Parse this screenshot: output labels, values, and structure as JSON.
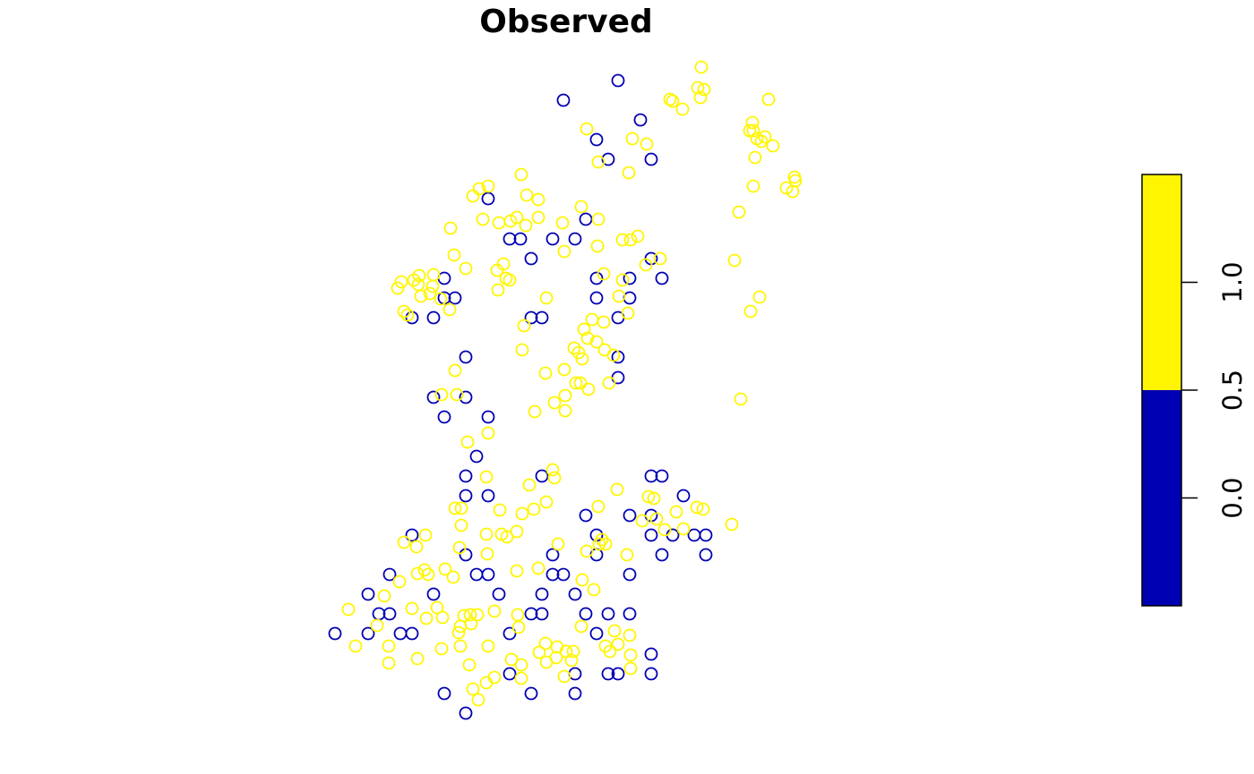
{
  "chart_data": {
    "type": "scatter",
    "title": "Observed",
    "xlabel": "",
    "ylabel": "",
    "grid": false,
    "colors": {
      "low": "#0000B3",
      "high": "#FFF500"
    },
    "legend": {
      "placement": "right",
      "type": "colorbar",
      "range": [
        -0.5,
        1.5
      ],
      "breaks": [
        -0.5,
        0.5,
        1.5
      ],
      "segment_colors": [
        "#0000B3",
        "#FFF500"
      ],
      "ticks": [
        {
          "value": 0.0,
          "label": "0.0"
        },
        {
          "value": 0.5,
          "label": "0.5"
        },
        {
          "value": 1.0,
          "label": "1.0"
        }
      ]
    },
    "series": [
      {
        "value": 0,
        "points": [
          [
            629,
            112
          ],
          [
            690,
            90
          ],
          [
            715,
            134
          ],
          [
            666,
            156
          ],
          [
            679,
            178
          ],
          [
            727,
            178
          ],
          [
            545,
            222
          ],
          [
            654,
            245
          ],
          [
            569,
            267
          ],
          [
            581,
            267
          ],
          [
            617,
            267
          ],
          [
            642,
            267
          ],
          [
            593,
            289
          ],
          [
            727,
            289
          ],
          [
            739,
            311
          ],
          [
            496,
            311
          ],
          [
            496,
            333
          ],
          [
            508,
            333
          ],
          [
            666,
            311
          ],
          [
            703,
            311
          ],
          [
            666,
            333
          ],
          [
            703,
            333
          ],
          [
            460,
            355
          ],
          [
            484,
            355
          ],
          [
            593,
            355
          ],
          [
            605,
            355
          ],
          [
            690,
            355
          ],
          [
            520,
            399
          ],
          [
            690,
            399
          ],
          [
            690,
            422
          ],
          [
            484,
            444
          ],
          [
            520,
            444
          ],
          [
            496,
            466
          ],
          [
            545,
            466
          ],
          [
            532,
            510
          ],
          [
            605,
            532
          ],
          [
            727,
            532
          ],
          [
            739,
            532
          ],
          [
            520,
            532
          ],
          [
            520,
            554
          ],
          [
            545,
            554
          ],
          [
            763,
            554
          ],
          [
            654,
            576
          ],
          [
            703,
            576
          ],
          [
            727,
            576
          ],
          [
            460,
            598
          ],
          [
            666,
            598
          ],
          [
            727,
            598
          ],
          [
            751,
            598
          ],
          [
            775,
            598
          ],
          [
            788,
            598
          ],
          [
            520,
            620
          ],
          [
            617,
            620
          ],
          [
            666,
            620
          ],
          [
            739,
            620
          ],
          [
            788,
            620
          ],
          [
            435,
            642
          ],
          [
            532,
            642
          ],
          [
            545,
            642
          ],
          [
            617,
            642
          ],
          [
            629,
            642
          ],
          [
            703,
            642
          ],
          [
            411,
            664
          ],
          [
            484,
            664
          ],
          [
            557,
            664
          ],
          [
            605,
            664
          ],
          [
            642,
            664
          ],
          [
            423,
            686
          ],
          [
            435,
            686
          ],
          [
            593,
            686
          ],
          [
            605,
            686
          ],
          [
            654,
            686
          ],
          [
            679,
            686
          ],
          [
            703,
            686
          ],
          [
            374,
            708
          ],
          [
            411,
            708
          ],
          [
            447,
            708
          ],
          [
            460,
            708
          ],
          [
            569,
            708
          ],
          [
            666,
            708
          ],
          [
            727,
            731
          ],
          [
            569,
            753
          ],
          [
            642,
            753
          ],
          [
            679,
            753
          ],
          [
            690,
            753
          ],
          [
            727,
            753
          ],
          [
            496,
            775
          ],
          [
            593,
            775
          ],
          [
            642,
            775
          ],
          [
            520,
            797
          ]
        ]
      },
      {
        "value": 1,
        "points": [
          [
            783,
            75
          ],
          [
            779,
            98
          ],
          [
            786,
            100
          ],
          [
            782,
            109
          ],
          [
            748,
            111
          ],
          [
            751,
            113
          ],
          [
            762,
            122
          ],
          [
            858,
            111
          ],
          [
            655,
            144
          ],
          [
            706,
            155
          ],
          [
            722,
            161
          ],
          [
            668,
            181
          ],
          [
            702,
            193
          ],
          [
            840,
            137
          ],
          [
            837,
            146
          ],
          [
            841,
            146
          ],
          [
            845,
            155
          ],
          [
            854,
            153
          ],
          [
            850,
            158
          ],
          [
            863,
            163
          ],
          [
            843,
            176
          ],
          [
            841,
            208
          ],
          [
            887,
            198
          ],
          [
            888,
            202
          ],
          [
            878,
            210
          ],
          [
            885,
            214
          ],
          [
            825,
            237
          ],
          [
            582,
            195
          ],
          [
            545,
            208
          ],
          [
            535,
            211
          ],
          [
            528,
            219
          ],
          [
            588,
            218
          ],
          [
            601,
            223
          ],
          [
            649,
            231
          ],
          [
            503,
            255
          ],
          [
            539,
            245
          ],
          [
            557,
            249
          ],
          [
            570,
            247
          ],
          [
            577,
            243
          ],
          [
            587,
            252
          ],
          [
            601,
            243
          ],
          [
            628,
            249
          ],
          [
            668,
            245
          ],
          [
            667,
            275
          ],
          [
            630,
            281
          ],
          [
            507,
            285
          ],
          [
            520,
            300
          ],
          [
            555,
            302
          ],
          [
            562,
            295
          ],
          [
            565,
            311
          ],
          [
            569,
            313
          ],
          [
            556,
            324
          ],
          [
            695,
            268
          ],
          [
            704,
            268
          ],
          [
            712,
            264
          ],
          [
            721,
            296
          ],
          [
            737,
            289
          ],
          [
            674,
            306
          ],
          [
            695,
            313
          ],
          [
            691,
            331
          ],
          [
            820,
            291
          ],
          [
            848,
            332
          ],
          [
            838,
            348
          ],
          [
            444,
            322
          ],
          [
            448,
            315
          ],
          [
            462,
            313
          ],
          [
            468,
            308
          ],
          [
            467,
            318
          ],
          [
            470,
            331
          ],
          [
            480,
            328
          ],
          [
            484,
            307
          ],
          [
            483,
            320
          ],
          [
            492,
            334
          ],
          [
            502,
            346
          ],
          [
            451,
            348
          ],
          [
            455,
            352
          ],
          [
            610,
            333
          ],
          [
            701,
            350
          ],
          [
            585,
            364
          ],
          [
            661,
            357
          ],
          [
            674,
            360
          ],
          [
            652,
            368
          ],
          [
            656,
            378
          ],
          [
            666,
            382
          ],
          [
            641,
            389
          ],
          [
            646,
            394
          ],
          [
            675,
            391
          ],
          [
            650,
            401
          ],
          [
            685,
            397
          ],
          [
            583,
            391
          ],
          [
            827,
            446
          ],
          [
            508,
            414
          ],
          [
            609,
            417
          ],
          [
            630,
            413
          ],
          [
            680,
            428
          ],
          [
            643,
            428
          ],
          [
            648,
            428
          ],
          [
            657,
            435
          ],
          [
            631,
            442
          ],
          [
            493,
            441
          ],
          [
            510,
            441
          ],
          [
            619,
            450
          ],
          [
            631,
            459
          ],
          [
            597,
            460
          ],
          [
            545,
            484
          ],
          [
            522,
            494
          ],
          [
            543,
            533
          ],
          [
            617,
            525
          ],
          [
            619,
            534
          ],
          [
            591,
            542
          ],
          [
            689,
            547
          ],
          [
            724,
            555
          ],
          [
            730,
            557
          ],
          [
            508,
            568
          ],
          [
            515,
            568
          ],
          [
            668,
            566
          ],
          [
            778,
            567
          ],
          [
            785,
            569
          ],
          [
            596,
            569
          ],
          [
            558,
            570
          ],
          [
            583,
            574
          ],
          [
            610,
            561
          ],
          [
            755,
            572
          ],
          [
            817,
            586
          ],
          [
            717,
            582
          ],
          [
            733,
            580
          ],
          [
            742,
            592
          ],
          [
            763,
            591
          ],
          [
            515,
            587
          ],
          [
            543,
            597
          ],
          [
            560,
            597
          ],
          [
            566,
            600
          ],
          [
            577,
            594
          ],
          [
            475,
            598
          ],
          [
            451,
            606
          ],
          [
            465,
            611
          ],
          [
            513,
            612
          ],
          [
            623,
            608
          ],
          [
            655,
            616
          ],
          [
            669,
            608
          ],
          [
            672,
            603
          ],
          [
            676,
            608
          ],
          [
            700,
            620
          ],
          [
            544,
            619
          ],
          [
            497,
            636
          ],
          [
            466,
            641
          ],
          [
            474,
            637
          ],
          [
            478,
            642
          ],
          [
            446,
            650
          ],
          [
            506,
            645
          ],
          [
            577,
            638
          ],
          [
            601,
            635
          ],
          [
            650,
            648
          ],
          [
            663,
            659
          ],
          [
            429,
            666
          ],
          [
            488,
            679
          ],
          [
            460,
            680
          ],
          [
            389,
            681
          ],
          [
            476,
            691
          ],
          [
            494,
            690
          ],
          [
            518,
            688
          ],
          [
            525,
            687
          ],
          [
            533,
            687
          ],
          [
            552,
            683
          ],
          [
            578,
            687
          ],
          [
            514,
            700
          ],
          [
            526,
            697
          ],
          [
            579,
            701
          ],
          [
            421,
            699
          ],
          [
            434,
            722
          ],
          [
            397,
            722
          ],
          [
            512,
            707
          ],
          [
            493,
            725
          ],
          [
            514,
            722
          ],
          [
            545,
            722
          ],
          [
            602,
            729
          ],
          [
            609,
            719
          ],
          [
            622,
            723
          ],
          [
            632,
            728
          ],
          [
            640,
            728
          ],
          [
            638,
            738
          ],
          [
            649,
            700
          ],
          [
            686,
            705
          ],
          [
            703,
            710
          ],
          [
            690,
            720
          ],
          [
            676,
            722
          ],
          [
            681,
            728
          ],
          [
            704,
            732
          ],
          [
            434,
            741
          ],
          [
            466,
            736
          ],
          [
            524,
            743
          ],
          [
            571,
            737
          ],
          [
            582,
            743
          ],
          [
            610,
            740
          ],
          [
            621,
            735
          ],
          [
            630,
            756
          ],
          [
            582,
            758
          ],
          [
            704,
            747
          ],
          [
            552,
            757
          ],
          [
            543,
            763
          ],
          [
            528,
            770
          ],
          [
            534,
            782
          ]
        ]
      }
    ]
  }
}
